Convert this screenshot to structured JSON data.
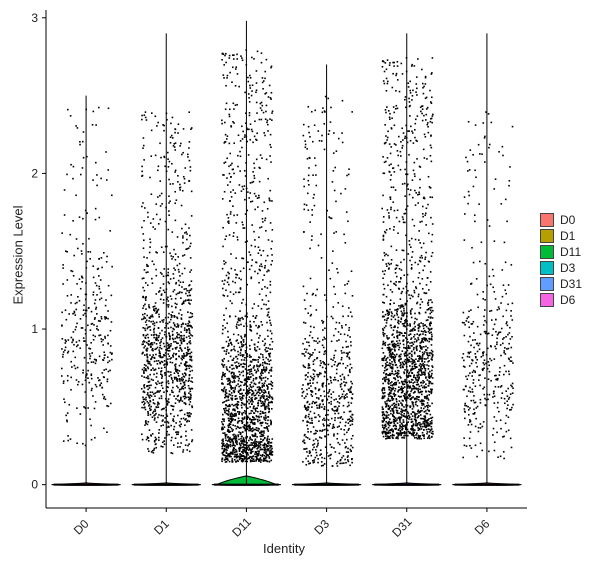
{
  "chart_data": {
    "type": "violin",
    "xlabel": "Identity",
    "ylabel": "Expression Level",
    "ylim": [
      -0.15,
      3.05
    ],
    "yticks": [
      0,
      1,
      2,
      3
    ],
    "categories": [
      "D0",
      "D1",
      "D11",
      "D3",
      "D31",
      "D6"
    ],
    "colors": [
      "#F8766D",
      "#B79F00",
      "#00BA38",
      "#00BFC4",
      "#619CFF",
      "#F564E3"
    ],
    "violin_max": [
      2.5,
      2.9,
      2.98,
      2.7,
      2.9,
      2.9
    ],
    "violin_bulge_width": [
      0.02,
      0.02,
      0.4,
      0.02,
      0.02,
      0.02
    ],
    "point_counts": [
      330,
      1100,
      1700,
      650,
      1750,
      380
    ],
    "point_range": [
      [
        0.25,
        2.5
      ],
      [
        0.2,
        2.4
      ],
      [
        0.15,
        2.8
      ],
      [
        0.12,
        2.5
      ],
      [
        0.3,
        2.75
      ],
      [
        0.15,
        2.4
      ]
    ],
    "point_modes": [
      0.95,
      0.8,
      0.45,
      0.55,
      0.65,
      0.75
    ],
    "grid": false,
    "legend_position": "right"
  }
}
